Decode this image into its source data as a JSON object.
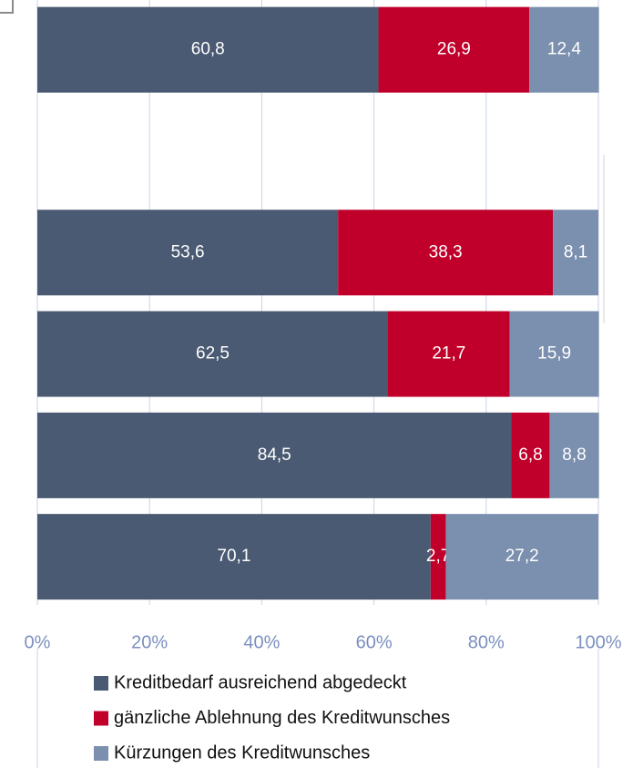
{
  "chart_data": {
    "type": "stacked-bar-horizontal",
    "categories": [
      null,
      null,
      null,
      null,
      null,
      null
    ],
    "series": [
      {
        "name": "Kreditbedarf ausreichend abgedeckt",
        "color": "#4a5a72",
        "values": [
          60.8,
          null,
          53.6,
          62.5,
          84.5,
          70.1
        ],
        "value_labels": [
          "60,8",
          null,
          "53,6",
          "62,5",
          "84,5",
          "70,1"
        ]
      },
      {
        "name": "gänzliche Ablehnung des Kreditwunsches",
        "color": "#c0002a",
        "values": [
          26.9,
          null,
          38.3,
          21.7,
          6.8,
          2.7
        ],
        "value_labels": [
          "26,9",
          null,
          "38,3",
          "21,7",
          "6,8",
          "2,7"
        ]
      },
      {
        "name": "Kürzungen des Kreditwunsches",
        "color": "#7b8fae",
        "values": [
          12.4,
          null,
          8.1,
          15.9,
          8.8,
          27.2
        ],
        "value_labels": [
          "12,4",
          null,
          "8,1",
          "15,9",
          "8,8",
          "27,2"
        ]
      }
    ],
    "xlim": [
      0,
      100
    ],
    "xticks": [
      {
        "value": 0,
        "label": "0%"
      },
      {
        "value": 20,
        "label": "20%"
      },
      {
        "value": 40,
        "label": "40%"
      },
      {
        "value": 60,
        "label": "60%"
      },
      {
        "value": 80,
        "label": "80%"
      },
      {
        "value": 100,
        "label": "100%"
      }
    ],
    "grid": true,
    "legend": "bottom"
  }
}
